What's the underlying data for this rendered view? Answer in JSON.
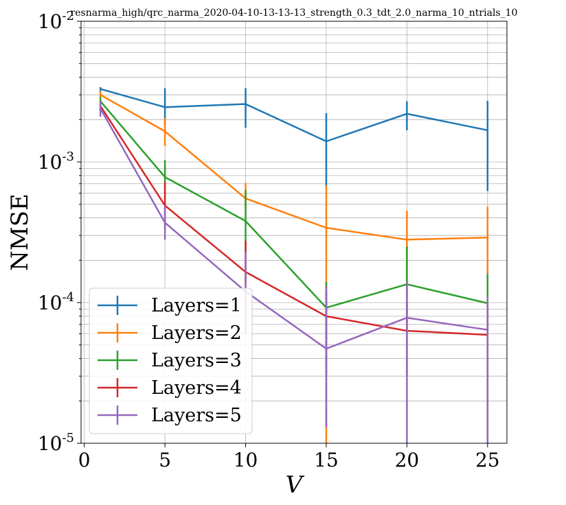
{
  "chart_data": {
    "type": "line",
    "title": "resnarma_high/qrc_narma_2020-04-10-13-13-13_strength_0.3_tdt_2.0_narma_10_ntrials_10",
    "xlabel": "V",
    "ylabel": "NMSE",
    "yscale": "log",
    "xlim": [
      -0.2,
      26.2
    ],
    "ylim": [
      1e-05,
      0.01
    ],
    "grid": true,
    "legend_position": "lower-left",
    "x": [
      1,
      5,
      10,
      15,
      20,
      25
    ],
    "x_ticks": [
      {
        "value": 0,
        "label": "0"
      },
      {
        "value": 5,
        "label": "5"
      },
      {
        "value": 10,
        "label": "10"
      },
      {
        "value": 15,
        "label": "15"
      },
      {
        "value": 20,
        "label": "20"
      },
      {
        "value": 25,
        "label": "25"
      }
    ],
    "y_ticks": [
      {
        "value": 1e-05,
        "base": "10",
        "exp": "-5"
      },
      {
        "value": 0.0001,
        "base": "10",
        "exp": "-4"
      },
      {
        "value": 0.001,
        "base": "10",
        "exp": "-3"
      },
      {
        "value": 0.01,
        "base": "10",
        "exp": "-2"
      }
    ],
    "series": [
      {
        "name": "Layers=1",
        "color": "#1f77b4",
        "values": [
          0.0033,
          0.00245,
          0.00258,
          0.0014,
          0.0022,
          0.00168
        ],
        "err_low": [
          0.003,
          0.0018,
          0.00175,
          0.00068,
          0.00168,
          0.00062
        ],
        "err_high": [
          0.0034,
          0.00335,
          0.00335,
          0.00222,
          0.0027,
          0.00272
        ]
      },
      {
        "name": "Layers=2",
        "color": "#ff7f0e",
        "values": [
          0.003,
          0.00165,
          0.00055,
          0.00034,
          0.00028,
          0.00029
        ],
        "err_low": [
          0.0028,
          0.0013,
          0.00046,
          1e-05,
          0.00011,
          0.00016
        ],
        "err_high": [
          0.0032,
          0.00205,
          0.00071,
          0.00068,
          0.00045,
          0.00048
        ]
      },
      {
        "name": "Layers=3",
        "color": "#2ca02c",
        "values": [
          0.0027,
          0.00078,
          0.00038,
          9.2e-05,
          0.000135,
          9.9e-05
        ],
        "err_low": [
          0.0025,
          0.00059,
          0.00023,
          6e-05,
          7.2e-05,
          6.1e-05
        ],
        "err_high": [
          0.0029,
          0.00103,
          0.00063,
          0.00014,
          0.00025,
          0.00016
        ]
      },
      {
        "name": "Layers=4",
        "color": "#d62728",
        "values": [
          0.0025,
          0.00049,
          0.000165,
          8e-05,
          6.3e-05,
          5.9e-05
        ],
        "err_low": [
          0.0023,
          0.00033,
          0.0001,
          3e-05,
          3e-05,
          1e-05
        ],
        "err_high": [
          0.0027,
          0.00072,
          0.000275,
          0.00012,
          0.0001,
          9.5e-05
        ]
      },
      {
        "name": "Layers=5",
        "color": "#9467bd",
        "values": [
          0.0024,
          0.00037,
          0.00012,
          4.7e-05,
          7.8e-05,
          6.4e-05
        ],
        "err_low": [
          0.0021,
          0.00028,
          6e-05,
          1.3e-05,
          1e-05,
          1e-05
        ],
        "err_high": [
          0.0027,
          0.00049,
          0.00023,
          0.00013,
          0.00014,
          0.00011
        ]
      }
    ]
  }
}
